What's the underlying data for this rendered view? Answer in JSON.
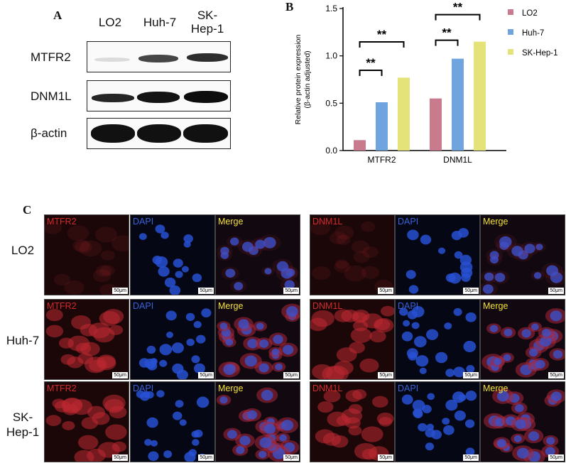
{
  "panels": {
    "a": "A",
    "b": "B",
    "c": "C"
  },
  "western_blot": {
    "columns": [
      "LO2",
      "Huh-7",
      "SK-\nHep-1"
    ],
    "rows": [
      "MTFR2",
      "DNM1L",
      "β-actin"
    ]
  },
  "chart_data": {
    "type": "bar",
    "categories": [
      "MTFR2",
      "DNM1L"
    ],
    "series": [
      {
        "name": "LO2",
        "values": [
          0.11,
          0.55
        ],
        "color": "#c97a8c"
      },
      {
        "name": "Huh-7",
        "values": [
          0.51,
          0.97
        ],
        "color": "#6fa4de"
      },
      {
        "name": "SK-Hep-1",
        "values": [
          0.77,
          1.15
        ],
        "color": "#e3e37a"
      }
    ],
    "ylabel": "Relative protein expression\n(β-actin adjusted)",
    "yticks": [
      "0.0",
      "0.5",
      "1.0",
      "1.5"
    ],
    "ylim": [
      0,
      1.5
    ],
    "significance": "**",
    "legend_position": "right"
  },
  "micrographs": {
    "row_labels": [
      "LO2",
      "Huh-7",
      "SK-\nHep-1"
    ],
    "channel_labels_left": [
      "MTFR2",
      "DAPI",
      "Merge"
    ],
    "channel_labels_right": [
      "DNM1L",
      "DAPI",
      "Merge"
    ],
    "scale_bar": "50μm",
    "colors": {
      "red": "#d42a2a",
      "blue": "#3a63d8",
      "merge": "#f2e23a"
    }
  }
}
